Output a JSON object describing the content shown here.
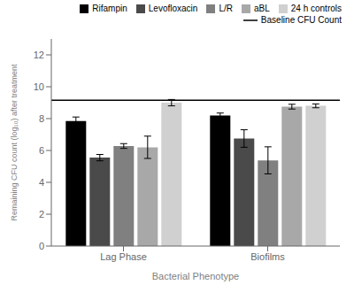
{
  "chart_data": {
    "type": "bar",
    "categories": [
      "Lag Phase",
      "Biofilms"
    ],
    "series": [
      {
        "name": "Rifampin",
        "color": "#000000",
        "values": [
          7.85,
          8.2
        ],
        "errors": [
          0.25,
          0.15
        ]
      },
      {
        "name": "Levofloxacin",
        "color": "#4a4a4a",
        "values": [
          5.55,
          6.75
        ],
        "errors": [
          0.2,
          0.55
        ]
      },
      {
        "name": "L/R",
        "color": "#808080",
        "values": [
          6.28,
          5.38
        ],
        "errors": [
          0.15,
          0.85
        ]
      },
      {
        "name": "aBL",
        "color": "#a8a8a8",
        "values": [
          6.2,
          8.75
        ],
        "errors": [
          0.7,
          0.15
        ]
      },
      {
        "name": "24 h controls",
        "color": "#d0d0d0",
        "values": [
          9.0,
          8.8
        ],
        "errors": [
          0.2,
          0.12
        ]
      }
    ],
    "reference_lines": [
      {
        "name": "Baseline CFU Count",
        "value": 9.15,
        "color": "#000000"
      }
    ],
    "xlabel": "Bacterial Phenotype",
    "ylabel": "Remaining CFU count (log₁₀) after treatment",
    "ylim": [
      0,
      13
    ],
    "yticks": [
      0,
      2,
      4,
      6,
      8,
      10,
      12
    ],
    "grid": false,
    "legend": "upper right"
  }
}
